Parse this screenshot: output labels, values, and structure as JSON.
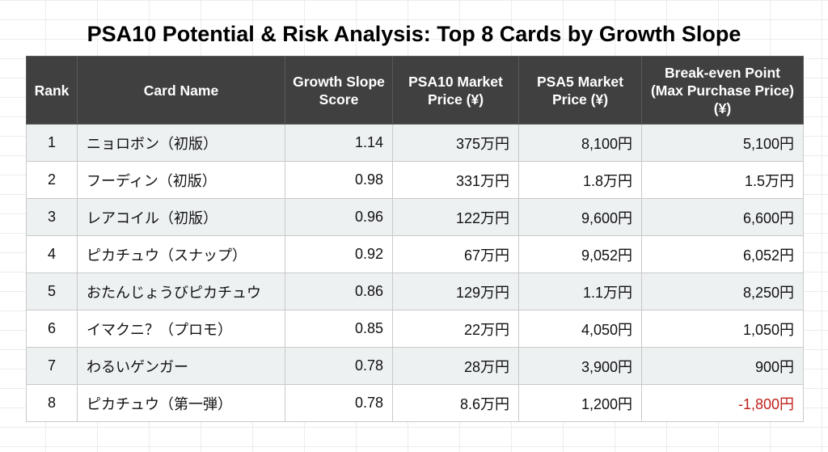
{
  "title": "PSA10 Potential & Risk Analysis: Top 8 Cards by Growth Slope",
  "table": {
    "columns": [
      "Rank",
      "Card Name",
      "Growth Slope Score",
      "PSA10 Market Price (¥)",
      "PSA5 Market Price (¥)",
      "Break-even Point (Max Purchase Price) (¥)"
    ],
    "rows": [
      {
        "rank": "1",
        "name": "ニョロボン（初版）",
        "score": "1.14",
        "psa10": "375万円",
        "psa5": "8,100円",
        "breakeven": "5,100円",
        "negative": false
      },
      {
        "rank": "2",
        "name": "フーディン（初版）",
        "score": "0.98",
        "psa10": "331万円",
        "psa5": "1.8万円",
        "breakeven": "1.5万円",
        "negative": false
      },
      {
        "rank": "3",
        "name": "レアコイル（初版）",
        "score": "0.96",
        "psa10": "122万円",
        "psa5": "9,600円",
        "breakeven": "6,600円",
        "negative": false
      },
      {
        "rank": "4",
        "name": "ピカチュウ（スナップ）",
        "score": "0.92",
        "psa10": "67万円",
        "psa5": "9,052円",
        "breakeven": "6,052円",
        "negative": false
      },
      {
        "rank": "5",
        "name": "おたんじょうびピカチュウ",
        "score": "0.86",
        "psa10": "129万円",
        "psa5": "1.1万円",
        "breakeven": "8,250円",
        "negative": false
      },
      {
        "rank": "6",
        "name": "イマクニ？（プロモ）",
        "score": "0.85",
        "psa10": "22万円",
        "psa5": "4,050円",
        "breakeven": "1,050円",
        "negative": false
      },
      {
        "rank": "7",
        "name": "わるいゲンガー",
        "score": "0.78",
        "psa10": "28万円",
        "psa5": "3,900円",
        "breakeven": "900円",
        "negative": false
      },
      {
        "rank": "8",
        "name": "ピカチュウ（第一弾）",
        "score": "0.78",
        "psa10": "8.6万円",
        "psa5": "1,200円",
        "breakeven": "-1,800円",
        "negative": true
      }
    ]
  },
  "colors": {
    "header_bg": "#404040",
    "header_text": "#ffffff",
    "row_stripe": "#edf1f2",
    "negative_text": "#c0201a"
  }
}
